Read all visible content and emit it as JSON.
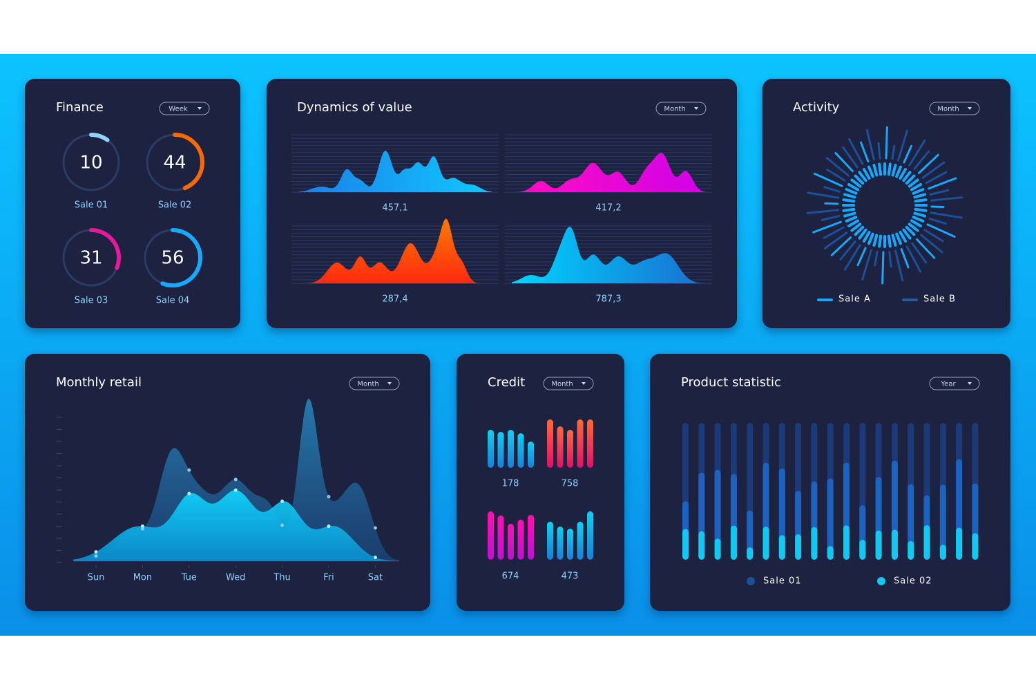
{
  "finance": {
    "title": "Finance",
    "filter": "Week",
    "gauges": [
      {
        "value": 10,
        "label": "Sale 01"
      },
      {
        "value": 44,
        "label": "Sale 02"
      },
      {
        "value": 31,
        "label": "Sale 03"
      },
      {
        "value": 56,
        "label": "Sale 04"
      }
    ]
  },
  "dynamics": {
    "title": "Dynamics of value",
    "filter": "Month",
    "values": [
      "457,1",
      "417,2",
      "287,4",
      "787,3"
    ]
  },
  "activity": {
    "title": "Activity",
    "filter": "Month",
    "legend": [
      "Sale A",
      "Sale B"
    ]
  },
  "monthly_retail": {
    "title": "Monthly retail",
    "filter": "Month",
    "days": [
      "Sun",
      "Mon",
      "Tue",
      "Wed",
      "Thu",
      "Fri",
      "Sat"
    ]
  },
  "credit": {
    "title": "Credit",
    "filter": "Month",
    "values": [
      "178",
      "758",
      "674",
      "473"
    ]
  },
  "product_statistic": {
    "title": "Product statistic",
    "filter": "Year",
    "legend": [
      "Sale 01",
      "Sale 02"
    ]
  }
}
